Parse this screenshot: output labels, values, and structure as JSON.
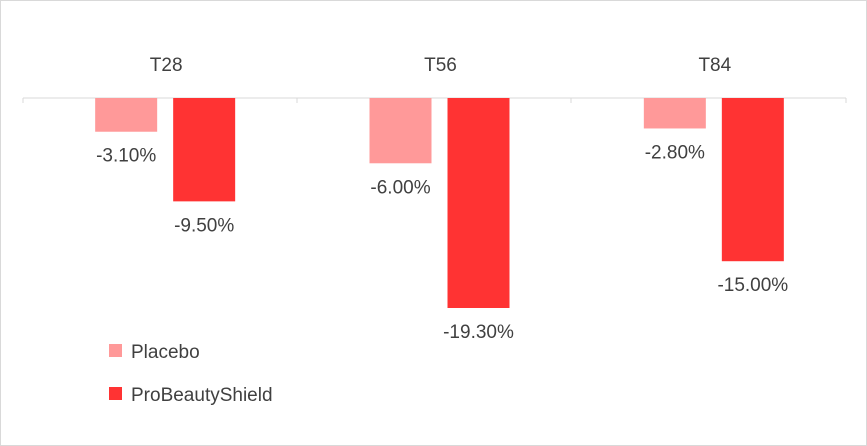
{
  "chart_data": {
    "type": "bar",
    "categories": [
      "T28",
      "T56",
      "T84"
    ],
    "series": [
      {
        "name": "Placebo",
        "values": [
          -3.1,
          -6.0,
          -2.8
        ],
        "labels": [
          "-3.10%",
          "-6.00%",
          "-2.80%"
        ],
        "color": "#ff9999"
      },
      {
        "name": "ProBeautyShield",
        "values": [
          -9.5,
          -19.3,
          -15.0
        ],
        "labels": [
          "-9.50%",
          "-19.30%",
          "-15.00%"
        ],
        "color": "#ff3333"
      }
    ],
    "ylim": [
      -19.3,
      0
    ],
    "axis_color": "#d9d9d9",
    "category_axis_position": "top",
    "legend_position": "bottom-left",
    "grid": false
  }
}
